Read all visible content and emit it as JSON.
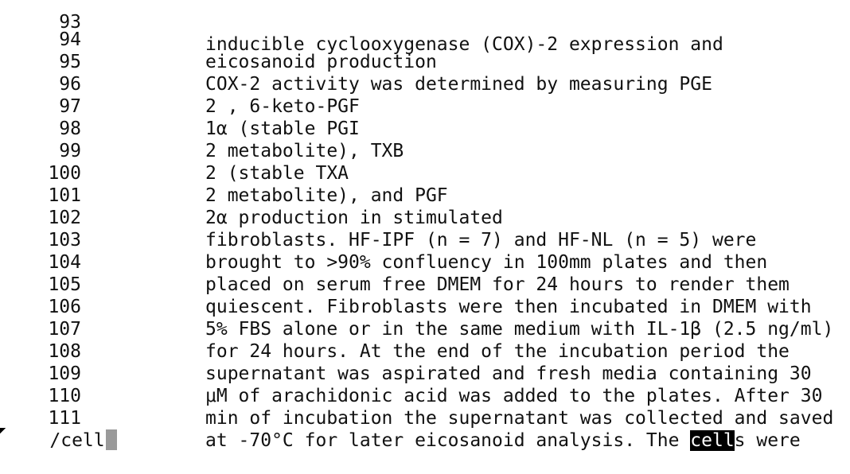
{
  "lines": [
    {
      "no": "93",
      "text": "inducible cyclooxygenase (COX)-2 expression and"
    },
    {
      "no": "94",
      "text": "eicosanoid production"
    },
    {
      "no": "95",
      "text": "COX-2 activity was determined by measuring PGE"
    },
    {
      "no": "96",
      "text": "2 , 6-keto-PGF"
    },
    {
      "no": "97",
      "text": "1α (stable PGI"
    },
    {
      "no": "98",
      "text": "2 metabolite), TXB"
    },
    {
      "no": "99",
      "text": "2 (stable TXA"
    },
    {
      "no": "100",
      "text": "2 metabolite), and PGF"
    },
    {
      "no": "101",
      "text": "2α production in stimulated"
    },
    {
      "no": "102",
      "text": "fibroblasts. HF-IPF (n = 7) and HF-NL (n = 5) were"
    },
    {
      "no": "103",
      "text": "brought to >90% confluency in 100mm plates and then"
    },
    {
      "no": "104",
      "text": "placed on serum free DMEM for 24 hours to render them"
    },
    {
      "no": "105",
      "text": "quiescent. Fibroblasts were then incubated in DMEM with"
    },
    {
      "no": "106",
      "text": "5% FBS alone or in the same medium with IL-1β (2.5 ng/ml)"
    },
    {
      "no": "107",
      "text": "for 24 hours. At the end of the incubation period the"
    },
    {
      "no": "108",
      "text": "supernatant was aspirated and fresh media containing 30"
    },
    {
      "no": "109",
      "text": "μM of arachidonic acid was added to the plates. After 30"
    },
    {
      "no": "110",
      "text": "min of incubation the supernatant was collected and saved"
    },
    {
      "no": "111",
      "text_before": "at -70°C for later eicosanoid analysis. The ",
      "match": "cell",
      "text_after": "s were"
    }
  ],
  "command": "/cell",
  "colors": {
    "background": "#ffffff",
    "text": "#111111",
    "match_bg": "#000000",
    "match_fg": "#ffffff",
    "cursor": "#9a9a9a"
  }
}
